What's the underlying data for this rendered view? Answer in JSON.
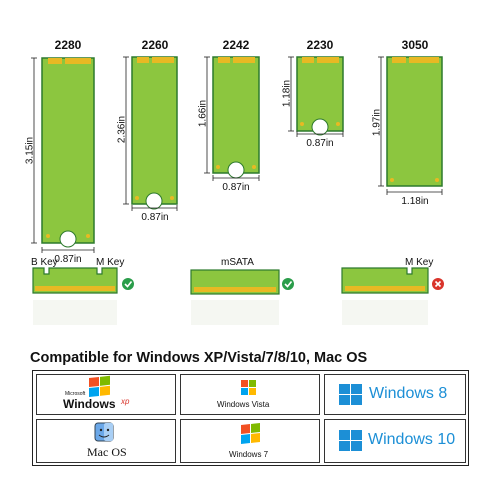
{
  "cards": [
    {
      "model": "2280",
      "length": "3.15in",
      "width": "0.87in"
    },
    {
      "model": "2260",
      "length": "2.36in",
      "width": "0.87in"
    },
    {
      "model": "2242",
      "length": "1.66in",
      "width": "0.87in"
    },
    {
      "model": "2230",
      "length": "1.18in",
      "width": "0.87in"
    },
    {
      "model": "3050",
      "length": "1.97in",
      "width": "1.18in"
    }
  ],
  "connectors": [
    {
      "key_left": "B Key",
      "key_right": "M Key",
      "status": "compatible",
      "status_icon": "check-icon"
    },
    {
      "key_left": "",
      "key_right": "mSATA",
      "status": "compatible",
      "status_icon": "check-icon"
    },
    {
      "key_left": "",
      "key_right": "M Key",
      "status": "incompatible",
      "status_icon": "cross-icon"
    }
  ],
  "headline": "Compatible for Windows XP/Vista/7/8/10, Mac OS",
  "os": {
    "xp_top": "Microsoft",
    "xp_main": "Windows",
    "xp_suffix": "xp",
    "vista": "Windows Vista",
    "win8": "Windows 8",
    "macos": "Mac OS",
    "win7": "Windows 7",
    "win10": "Windows 10"
  },
  "colors": {
    "pcb_green": "#8cc63f",
    "pcb_edge": "#2d7a2d",
    "gold": "#e8b923",
    "check_green": "#2a9d4a",
    "cross_red": "#d9342b",
    "win_blue": "#1c8fd6"
  }
}
